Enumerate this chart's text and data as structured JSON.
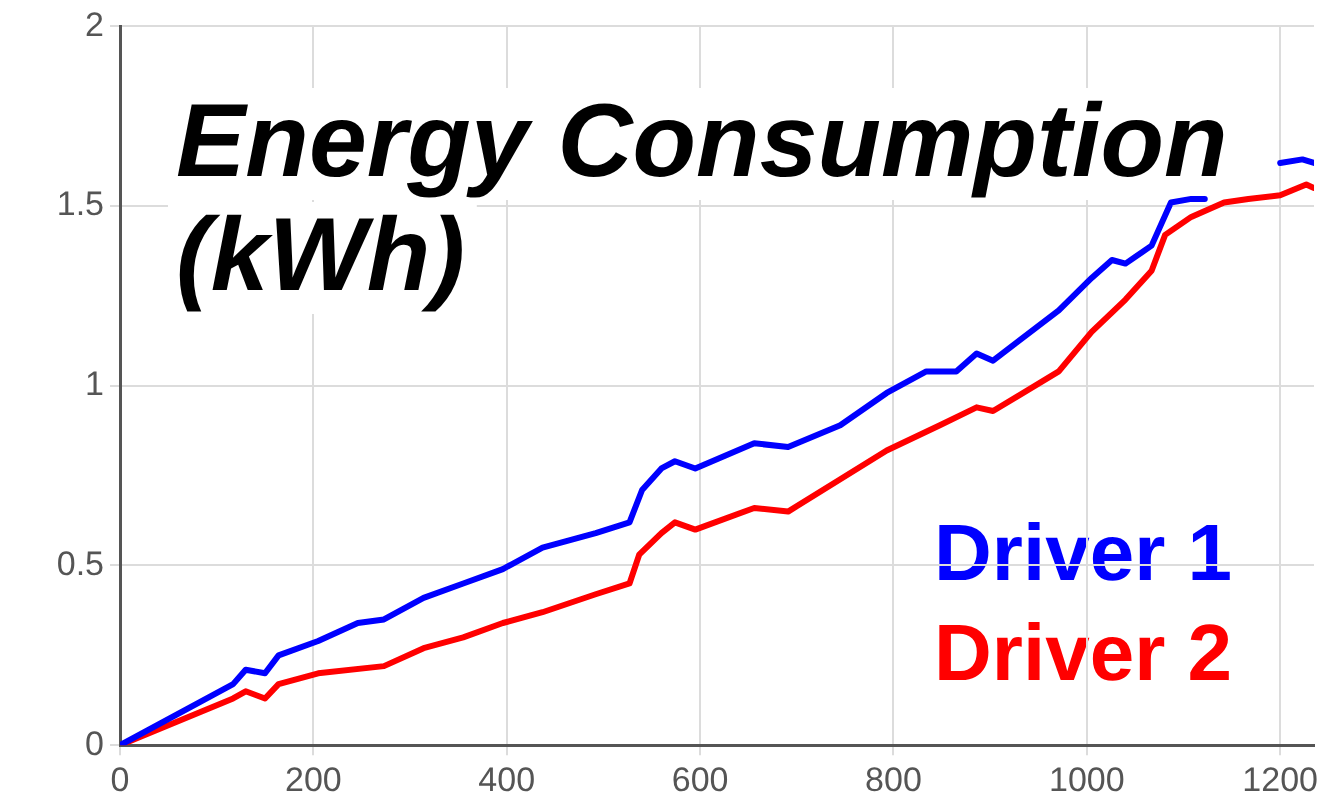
{
  "chart_data": {
    "type": "line",
    "title": "Energy Consumption (kWh)",
    "xlim": [
      0,
      1235
    ],
    "xticks": [
      0,
      200,
      400,
      600,
      800,
      1000,
      1200
    ],
    "ylim": [
      0,
      2
    ],
    "yticks": [
      0,
      0.5,
      1,
      1.5,
      2
    ],
    "grid": true,
    "legend": "bottom right",
    "marker": "none",
    "line_style": "solid",
    "series": [
      {
        "name": "Driver 1",
        "color": "#0000ff",
        "x": [
          0,
          117,
          130,
          150,
          164,
          205,
          246,
          273,
          314,
          355,
          396,
          437,
          492,
          527,
          540,
          560,
          574,
          595,
          656,
          691,
          745,
          793,
          834,
          865,
          886,
          903,
          971,
          1005,
          1026,
          1040,
          1067,
          1087,
          1108,
          1122,
          1160,
          1200,
          1223,
          1235
        ],
        "values": [
          0,
          0.17,
          0.21,
          0.2,
          0.25,
          0.29,
          0.34,
          0.35,
          0.41,
          0.45,
          0.49,
          0.55,
          0.59,
          0.62,
          0.71,
          0.77,
          0.79,
          0.77,
          0.84,
          0.83,
          0.89,
          0.98,
          1.04,
          1.04,
          1.09,
          1.07,
          1.21,
          1.3,
          1.35,
          1.34,
          1.39,
          1.51,
          1.52,
          1.52,
          null,
          1.62,
          1.63,
          1.62
        ]
      },
      {
        "name": "Driver 2",
        "color": "#ff0000",
        "x": [
          0,
          117,
          130,
          150,
          164,
          205,
          273,
          314,
          355,
          396,
          437,
          492,
          527,
          537,
          560,
          574,
          595,
          656,
          691,
          745,
          793,
          848,
          886,
          903,
          971,
          1005,
          1040,
          1067,
          1081,
          1108,
          1142,
          1167,
          1200,
          1227,
          1235
        ],
        "values": [
          0,
          0.13,
          0.15,
          0.13,
          0.17,
          0.2,
          0.22,
          0.27,
          0.3,
          0.34,
          0.37,
          0.42,
          0.45,
          0.53,
          0.59,
          0.62,
          0.6,
          0.66,
          0.65,
          0.74,
          0.82,
          0.89,
          0.94,
          0.93,
          1.04,
          1.15,
          1.24,
          1.32,
          1.42,
          1.47,
          1.51,
          1.52,
          1.53,
          1.56,
          1.55
        ]
      }
    ]
  }
}
